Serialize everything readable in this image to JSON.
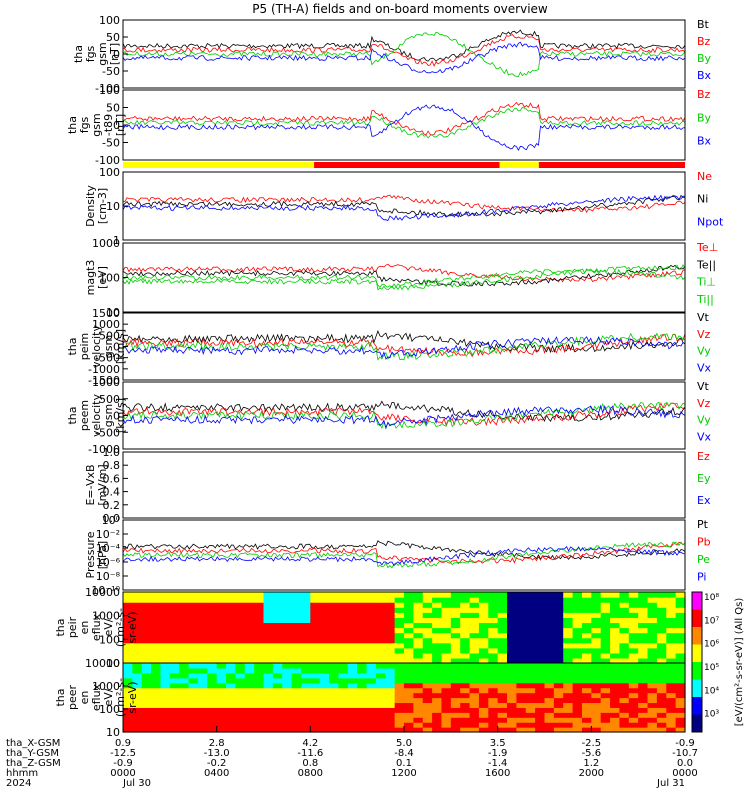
{
  "title": "P5 (TH-A) fields and on-board moments overview",
  "state_bar": {
    "colors": [
      "#ffff00",
      "#ff0000",
      "#ffff00",
      "#ff0000"
    ],
    "fractions": [
      0.34,
      0.33,
      0.07,
      0.26
    ]
  },
  "panels": [
    {
      "id": "fgs-gsm",
      "ylabel": [
        "tha",
        "fgs",
        "gsm",
        "[nT]"
      ],
      "yticks": [
        "100",
        "50",
        "0",
        "-50",
        "-100"
      ],
      "ylim": [
        -100,
        100
      ],
      "log": false,
      "legend": [
        {
          "text": "Bt",
          "color": "#000000"
        },
        {
          "text": "Bz",
          "color": "#ff0000"
        },
        {
          "text": "By",
          "color": "#00cc00"
        },
        {
          "text": "Bx",
          "color": "#0000ff"
        }
      ]
    },
    {
      "id": "fgs-gsm-t89",
      "ylabel": [
        "tha",
        "fgs",
        "gsm",
        "-t89",
        "[nT]"
      ],
      "yticks": [
        "100",
        "50",
        "0",
        "-50",
        "-100"
      ],
      "ylim": [
        -120,
        120
      ],
      "log": false,
      "legend": [
        {
          "text": "Bz",
          "color": "#ff0000"
        },
        {
          "text": "By",
          "color": "#00cc00"
        },
        {
          "text": "Bx",
          "color": "#0000ff"
        }
      ]
    },
    {
      "id": "density",
      "ylabel": [
        "Density",
        "[cm-3]"
      ],
      "yticks": [
        "100",
        "10",
        "1"
      ],
      "ylim": [
        0.1,
        100
      ],
      "log": true,
      "legend": [
        {
          "text": "Ne",
          "color": "#ff0000"
        },
        {
          "text": "Ni",
          "color": "#000000"
        },
        {
          "text": "Npot",
          "color": "#0000ff"
        }
      ]
    },
    {
      "id": "temperature",
      "ylabel": [
        "magt3",
        "[eV]"
      ],
      "yticks": [
        "1000",
        "100",
        "10"
      ],
      "ylim": [
        10,
        10000
      ],
      "log": true,
      "legend": [
        {
          "text": "Te⊥",
          "color": "#ff0000"
        },
        {
          "text": "Te||",
          "color": "#000000"
        },
        {
          "text": "Ti⊥",
          "color": "#00cc00"
        },
        {
          "text": "Ti||",
          "color": "#00cc00"
        }
      ]
    },
    {
      "id": "peim-velocity",
      "ylabel": [
        "tha",
        "peim",
        "velocity",
        "gsm",
        "[km/s]"
      ],
      "yticks": [
        "1500",
        "1000",
        "500",
        "0",
        "-500",
        "-1000",
        "-1500"
      ],
      "ylim": [
        -1500,
        1500
      ],
      "log": false,
      "legend": [
        {
          "text": "Vt",
          "color": "#000000"
        },
        {
          "text": "Vz",
          "color": "#ff0000"
        },
        {
          "text": "Vy",
          "color": "#00cc00"
        },
        {
          "text": "Vx",
          "color": "#0000ff"
        }
      ]
    },
    {
      "id": "peem-velocity",
      "ylabel": [
        "tha",
        "peem",
        "velocity",
        "gsm",
        "[km/s]"
      ],
      "yticks": [
        "1000",
        "500",
        "0",
        "-500",
        "-1000"
      ],
      "ylim": [
        -1000,
        1000
      ],
      "log": false,
      "legend": [
        {
          "text": "Vt",
          "color": "#000000"
        },
        {
          "text": "Vz",
          "color": "#ff0000"
        },
        {
          "text": "Vy",
          "color": "#00cc00"
        },
        {
          "text": "Vx",
          "color": "#0000ff"
        }
      ]
    },
    {
      "id": "efield",
      "ylabel": [
        "E=-VxB",
        "[mV/m]"
      ],
      "yticks": [
        "1.0",
        "0.8",
        "0.6",
        "0.4",
        "0.2",
        "0.0"
      ],
      "ylim": [
        0,
        1
      ],
      "log": false,
      "legend": [
        {
          "text": "Ez",
          "color": "#ff0000"
        },
        {
          "text": "Ey",
          "color": "#00cc00"
        },
        {
          "text": "Ex",
          "color": "#0000ff"
        }
      ]
    },
    {
      "id": "pressure",
      "ylabel": [
        "Pressure",
        "[nPa]"
      ],
      "yticks": [
        "10⁰",
        "10⁻²",
        "10⁻⁴",
        "10⁻⁶",
        "10⁻⁸",
        "10⁻¹⁰"
      ],
      "ylim": [
        1e-10,
        1
      ],
      "log": true,
      "legend": [
        {
          "text": "Pt",
          "color": "#000000"
        },
        {
          "text": "Pb",
          "color": "#ff0000"
        },
        {
          "text": "Pe",
          "color": "#00cc00"
        },
        {
          "text": "Pi",
          "color": "#0000ff"
        }
      ]
    },
    {
      "id": "peir-eflux",
      "ylabel": [
        "tha",
        "peir",
        "en",
        "eflux",
        "eV/",
        "(cm²-s-",
        "sr-eV)"
      ],
      "yticks": [
        "10000",
        "1000",
        "100",
        "10"
      ],
      "ylim": [
        5,
        20000
      ],
      "log": true,
      "legend": []
    },
    {
      "id": "peer-eflux",
      "ylabel": [
        "tha",
        "peer",
        "en",
        "eflux",
        "eV/",
        "(cm²-s-",
        "sr-eV)"
      ],
      "yticks": [
        "10000",
        "1000",
        "100",
        "10"
      ],
      "ylim": [
        5,
        20000
      ],
      "log": true,
      "legend": []
    }
  ],
  "colorbar": {
    "ticks": [
      "10⁸",
      "10⁷",
      "10⁶",
      "10⁵",
      "10⁴",
      "10³"
    ],
    "label": "[eV/(cm²-s-sr-eV)] (All Qs)",
    "colors": [
      "#ff00ff",
      "#ff0000",
      "#ff8800",
      "#ffff00",
      "#00ff00",
      "#00ffff",
      "#0000ff",
      "#000080"
    ]
  },
  "footer": {
    "rows": [
      {
        "label": "tha_X-GSM",
        "values": [
          "0.9",
          "2.8",
          "4.2",
          "5.0",
          "3.5",
          "-2.5",
          "-0.9"
        ]
      },
      {
        "label": "tha_Y-GSM",
        "values": [
          "-12.5",
          "-13.0",
          "-11.6",
          "-8.4",
          "-1.9",
          "-5.6",
          "-10.7"
        ]
      },
      {
        "label": "tha_Z-GSM",
        "values": [
          "-0.9",
          "-0.2",
          "0.8",
          "0.1",
          "-1.4",
          "1.2",
          "0.0"
        ]
      },
      {
        "label": "hhmm",
        "values": [
          "0000",
          "0400",
          "0800",
          "1200",
          "1600",
          "2000",
          "0000"
        ]
      },
      {
        "label": "2024",
        "values": [
          "Jul 30",
          "",
          "",
          "",
          "",
          "",
          "Jul 31"
        ]
      }
    ]
  },
  "chart_data": {
    "type": "line",
    "title": "P5 (TH-A) fields and on-board moments overview",
    "x": [
      "0000",
      "0400",
      "0800",
      "1200",
      "1600",
      "2000",
      "0000"
    ],
    "xlabel": "hhmm",
    "series": [
      {
        "name": "Bt",
        "panel": "fgs-gsm",
        "color": "#000000",
        "values": [
          45,
          45,
          55,
          70,
          85,
          60,
          30
        ]
      },
      {
        "name": "Bz",
        "panel": "fgs-gsm",
        "color": "#ff0000",
        "values": [
          25,
          0,
          10,
          15,
          85,
          60,
          28
        ]
      },
      {
        "name": "By",
        "panel": "fgs-gsm",
        "color": "#00cc00",
        "values": [
          15,
          5,
          15,
          30,
          -100,
          -45,
          -5
        ]
      },
      {
        "name": "Bx",
        "panel": "fgs-gsm",
        "color": "#0000ff",
        "values": [
          -25,
          -15,
          -15,
          -5,
          10,
          0,
          -5
        ]
      },
      {
        "name": "Ne",
        "panel": "density",
        "color": "#ff0000",
        "values": [
          40,
          45,
          50,
          20,
          0.5,
          0.3,
          0.1
        ]
      },
      {
        "name": "Ni",
        "panel": "density",
        "color": "#000000",
        "values": [
          35,
          30,
          45,
          20,
          3,
          0.3,
          0.1
        ]
      },
      {
        "name": "Npot",
        "panel": "density",
        "color": "#0000ff",
        "values": [
          30,
          30,
          30,
          20,
          20,
          2,
          0.2
        ]
      },
      {
        "name": "Te⊥",
        "panel": "temperature",
        "color": "#ff0000",
        "values": [
          60,
          50,
          60,
          1500,
          1800,
          1200,
          800
        ]
      },
      {
        "name": "Ti||",
        "panel": "temperature",
        "color": "#00cc00",
        "values": [
          700,
          700,
          800,
          1800,
          2500,
          2000,
          2000
        ]
      },
      {
        "name": "Pt",
        "panel": "pressure",
        "color": "#000000",
        "values": [
          0.1,
          0.1,
          0.2,
          0.3,
          1.0,
          0.5,
          0.3
        ]
      }
    ]
  }
}
